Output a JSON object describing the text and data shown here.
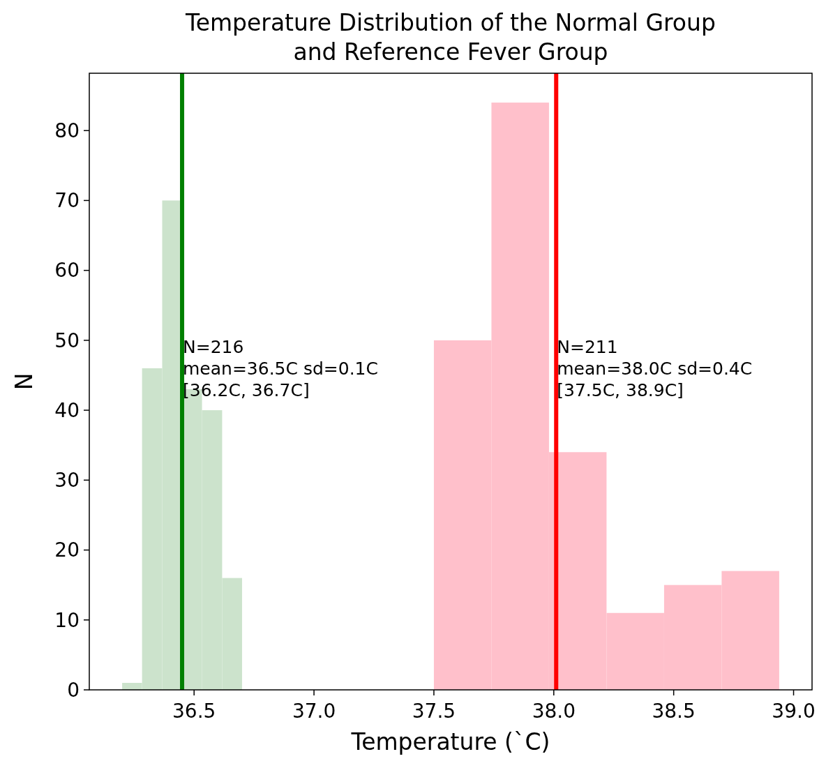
{
  "chart_data": {
    "type": "histogram",
    "title": "Temperature Distribution of the Normal Group\nand Reference Fever Group",
    "xlabel": "Temperature (`C)",
    "ylabel": "N",
    "series": [
      {
        "color": "#cce3cc",
        "values": [
          1,
          46,
          70,
          43,
          40,
          16,
          null,
          null,
          null,
          null,
          null,
          null,
          null
        ]
      },
      {
        "color": "#ffc0cb",
        "values": [
          null,
          null,
          null,
          null,
          null,
          null,
          null,
          50,
          84,
          34,
          11,
          15,
          17
        ]
      }
    ],
    "bins": [
      36.2,
      36.283,
      36.367,
      36.45,
      36.533,
      36.617,
      36.7,
      37.5,
      37.74,
      37.98,
      38.22,
      38.46,
      38.7,
      38.94
    ],
    "ref_lines": [
      {
        "axis": "x",
        "value": 36.45,
        "color": "#008000"
      },
      {
        "axis": "x",
        "value": 38.01,
        "color": "#ff0000"
      }
    ],
    "annotations": [
      {
        "text": "N=216\nmean=36.5C sd=0.1C\n[36.2C, 36.7C]",
        "x": 36.45,
        "y": 50
      },
      {
        "text": "N=211\nmean=38.0C sd=0.4C\n[37.5C, 38.9C]",
        "x": 38.01,
        "y": 50
      }
    ],
    "xlim": [
      36.063,
      39.077
    ],
    "xticks": [
      {
        "value": 36.5,
        "label": "36.5"
      },
      {
        "value": 37,
        "label": "37.0"
      },
      {
        "value": 37.5,
        "label": "37.5"
      },
      {
        "value": 38,
        "label": "38.0"
      },
      {
        "value": 38.5,
        "label": "38.5"
      },
      {
        "value": 39,
        "label": "39.0"
      }
    ],
    "ylim": [
      0,
      88.2
    ],
    "yticks": [
      {
        "value": 0,
        "label": "0"
      },
      {
        "value": 10,
        "label": "10"
      },
      {
        "value": 20,
        "label": "20"
      },
      {
        "value": 30,
        "label": "30"
      },
      {
        "value": 40,
        "label": "40"
      },
      {
        "value": 50,
        "label": "50"
      },
      {
        "value": 60,
        "label": "60"
      },
      {
        "value": 70,
        "label": "70"
      },
      {
        "value": 80,
        "label": "80"
      }
    ],
    "grid": false
  }
}
